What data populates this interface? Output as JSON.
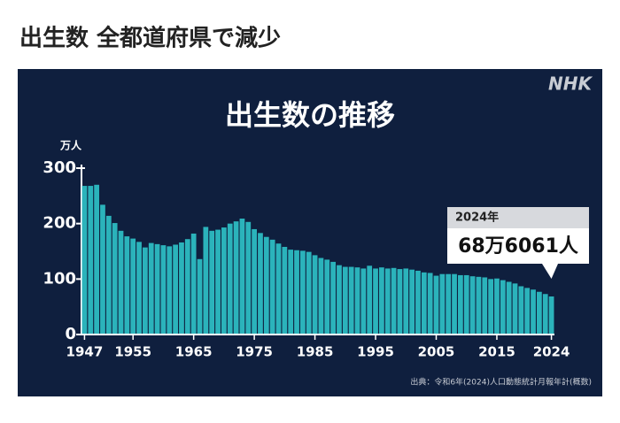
{
  "header": {
    "title": "出生数 全都道府県で減少"
  },
  "chart_data": {
    "type": "bar",
    "title": "出生数の推移",
    "y_label": "万人",
    "logo": "NHK",
    "source": "出典：令和6年(2024)人口動態統計月報年計(概数)",
    "categories": [
      "1947",
      null,
      null,
      null,
      null,
      null,
      null,
      null,
      "1955",
      null,
      null,
      null,
      null,
      null,
      null,
      null,
      null,
      null,
      "1965",
      null,
      null,
      null,
      null,
      null,
      null,
      null,
      null,
      null,
      "1975",
      null,
      null,
      null,
      null,
      null,
      null,
      null,
      null,
      null,
      "1985",
      null,
      null,
      null,
      null,
      null,
      null,
      null,
      null,
      null,
      "1995",
      null,
      null,
      null,
      null,
      null,
      null,
      null,
      null,
      null,
      "2005",
      null,
      null,
      null,
      null,
      null,
      null,
      null,
      null,
      null,
      "2015",
      null,
      null,
      null,
      null,
      null,
      null,
      null,
      null,
      "2024"
    ],
    "values": [
      268,
      268,
      270,
      234,
      214,
      201,
      187,
      177,
      173,
      167,
      157,
      165,
      163,
      161,
      159,
      162,
      166,
      172,
      182,
      136,
      194,
      187,
      189,
      193,
      200,
      204,
      209,
      203,
      190,
      183,
      176,
      171,
      164,
      158,
      153,
      152,
      151,
      149,
      143,
      138,
      135,
      131,
      125,
      122,
      122,
      121,
      119,
      124,
      119,
      121,
      119,
      120,
      118,
      119,
      117,
      115,
      112,
      111,
      106,
      109,
      109,
      109,
      107,
      107,
      105,
      104,
      103,
      100,
      101,
      98,
      95,
      92,
      87,
      84,
      81,
      77,
      73,
      68.6061
    ],
    "color": "#2bb3bb",
    "ylim": [
      0,
      300
    ],
    "yticks": [
      0,
      100,
      200,
      300
    ],
    "grid": true,
    "annotation": {
      "label": "2024年",
      "text": "68万6061人"
    }
  }
}
